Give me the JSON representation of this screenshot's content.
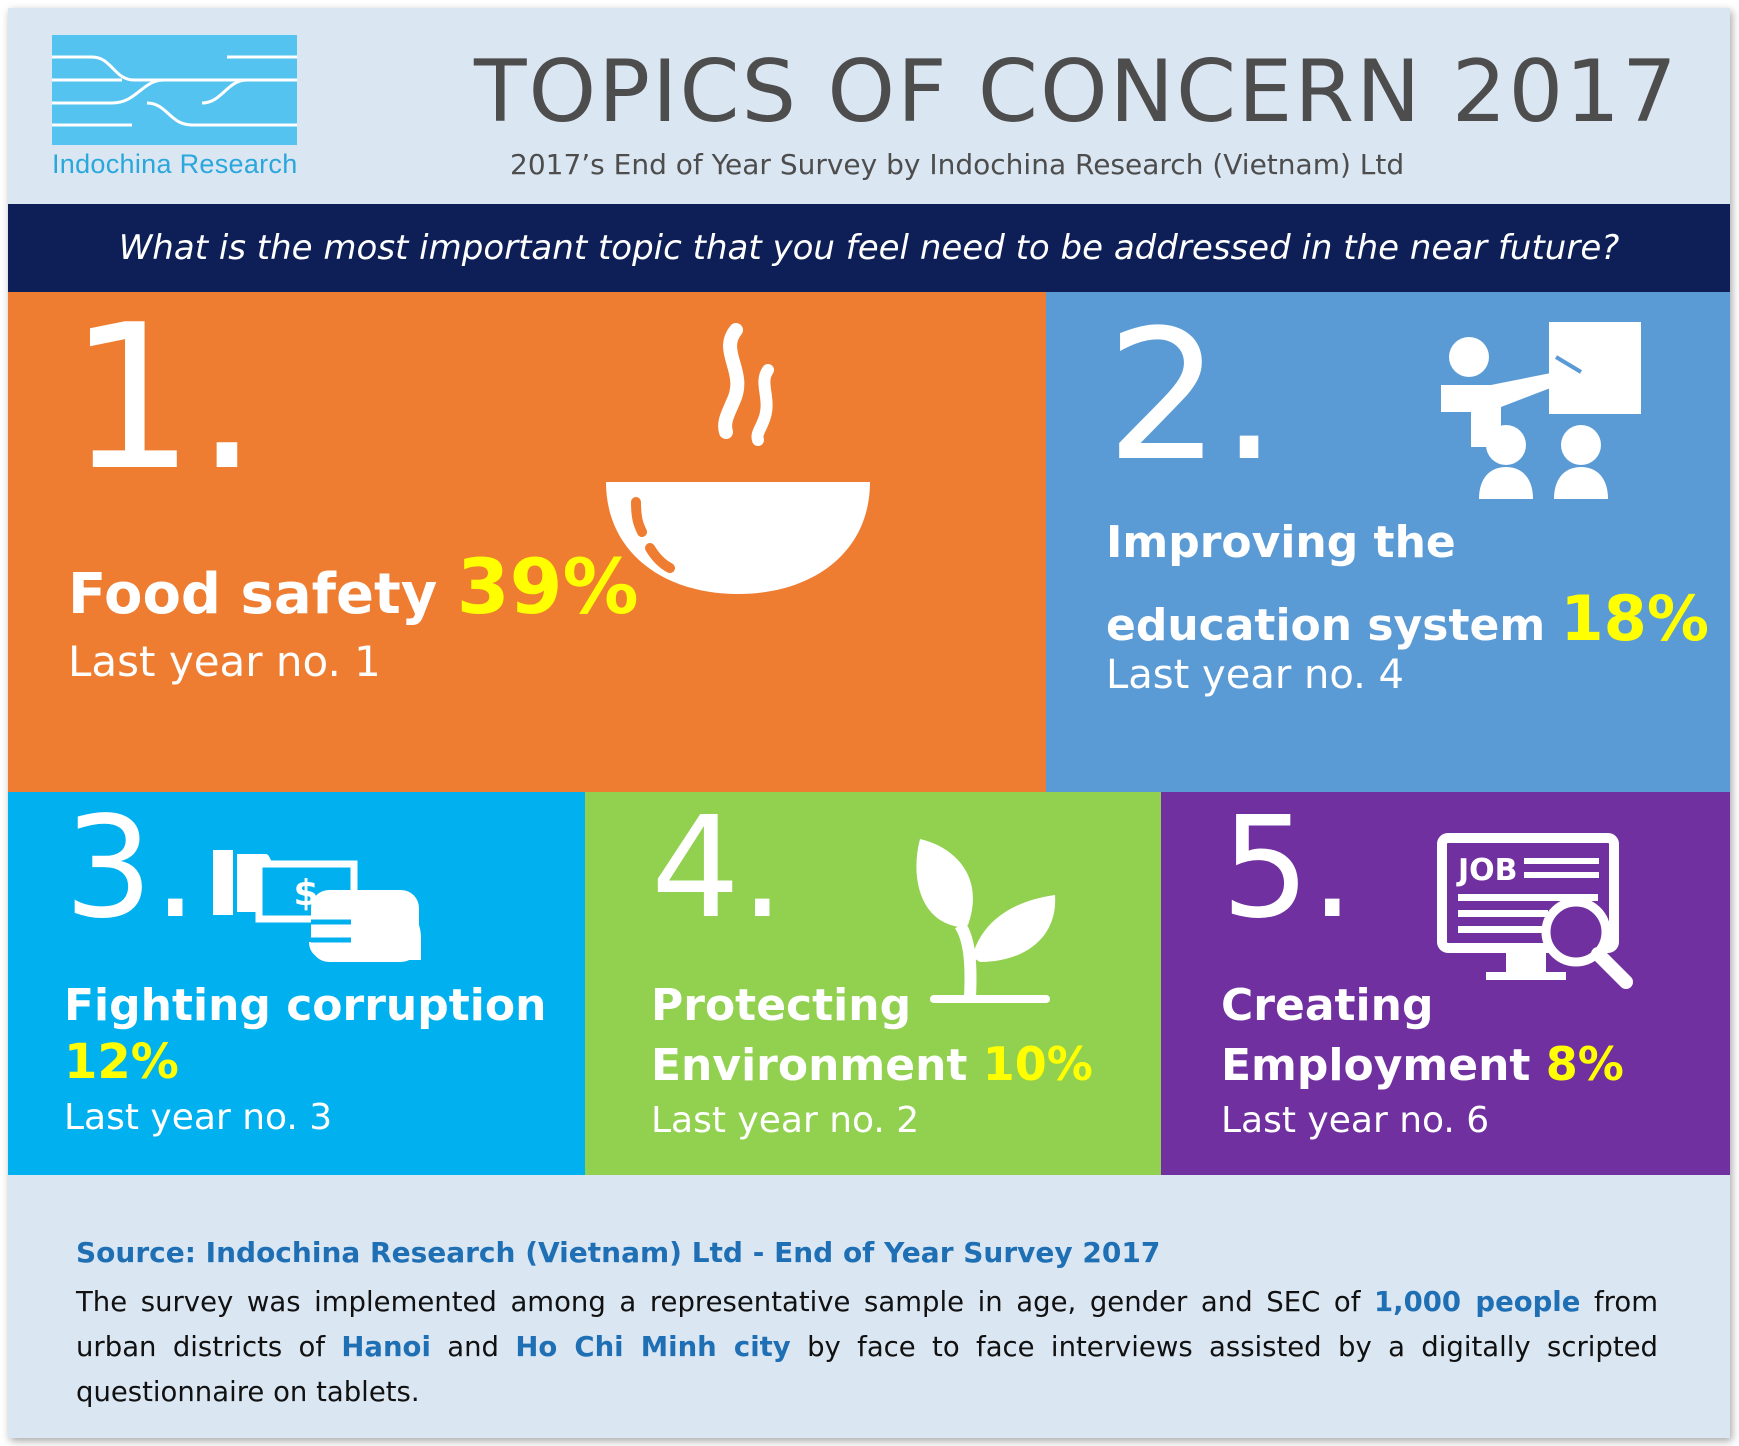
{
  "header": {
    "logo_text": "Indochina Research",
    "title": "TOPICS OF CONCERN 2017",
    "subtitle": "2017’s End of Year Survey by Indochina Research (Vietnam) Ltd",
    "question": "What is the most important topic that you feel need to be addressed in the near future?"
  },
  "topics": [
    {
      "rank": "1.",
      "label": "Food safety",
      "label_line2": "",
      "percent": "39%",
      "last_year": "Last year no. 1",
      "icon": "soup-bowl-icon",
      "color": "#ee7d31"
    },
    {
      "rank": "2.",
      "label": "Improving the",
      "label_line2": "education system",
      "percent": "18%",
      "last_year": "Last year no. 4",
      "icon": "teacher-presentation-icon",
      "color": "#5b9bd5"
    },
    {
      "rank": "3.",
      "label": "Fighting corruption",
      "label_line2": "",
      "percent": "12%",
      "last_year": "Last year no. 3",
      "icon": "bribe-money-hand-icon",
      "color": "#00b0ef"
    },
    {
      "rank": "4.",
      "label": "Protecting",
      "label_line2": "Environment",
      "percent": "10%",
      "last_year": "Last year no. 2",
      "icon": "sprout-plant-icon",
      "color": "#92d050"
    },
    {
      "rank": "5.",
      "label": "Creating",
      "label_line2": "Employment",
      "percent": "8%",
      "last_year": "Last year no. 6",
      "icon": "job-search-monitor-icon",
      "color": "#7030a0"
    }
  ],
  "footer": {
    "source": "Source:  Indochina Research (Vietnam) Ltd - End of Year Survey 2017",
    "text_1": "The survey was implemented among a representative sample in age, gender and SEC of ",
    "highlight_1": "1,000 people",
    "text_2": " from urban districts of ",
    "highlight_2": "Hanoi",
    "text_3": " and ",
    "highlight_3": "Ho Chi Minh city",
    "text_4": " by face to face interviews assisted by a digitally scripted questionnaire on tablets."
  },
  "colors": {
    "background": "#dae6f2",
    "question_bar": "#0d1f56",
    "percent": "#ffff00",
    "highlight": "#1f6fb5"
  }
}
